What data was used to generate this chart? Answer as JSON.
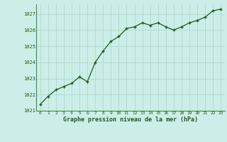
{
  "x": [
    0,
    1,
    2,
    3,
    4,
    5,
    6,
    7,
    8,
    9,
    10,
    11,
    12,
    13,
    14,
    15,
    16,
    17,
    18,
    19,
    20,
    21,
    22,
    23
  ],
  "y": [
    1021.4,
    1021.9,
    1022.3,
    1022.5,
    1022.7,
    1023.1,
    1022.8,
    1024.0,
    1024.7,
    1025.3,
    1025.6,
    1026.1,
    1026.2,
    1026.45,
    1026.3,
    1026.45,
    1026.2,
    1026.0,
    1026.2,
    1026.45,
    1026.6,
    1026.8,
    1027.2,
    1027.3
  ],
  "line_color": "#1e5c1e",
  "marker": "+",
  "marker_size": 3,
  "line_width": 0.9,
  "bg_color": "#cceee8",
  "grid_color": "#aaddcc",
  "xlabel": "Graphe pression niveau de la mer (hPa)",
  "xlabel_color": "#1e5c1e",
  "tick_color": "#1e5c1e",
  "ylim": [
    1021.0,
    1027.6
  ],
  "yticks": [
    1021,
    1022,
    1023,
    1024,
    1025,
    1026,
    1027
  ],
  "xlim": [
    -0.5,
    23.5
  ],
  "xticks": [
    0,
    1,
    2,
    3,
    4,
    5,
    6,
    7,
    8,
    9,
    10,
    11,
    12,
    13,
    14,
    15,
    16,
    17,
    18,
    19,
    20,
    21,
    22,
    23
  ]
}
